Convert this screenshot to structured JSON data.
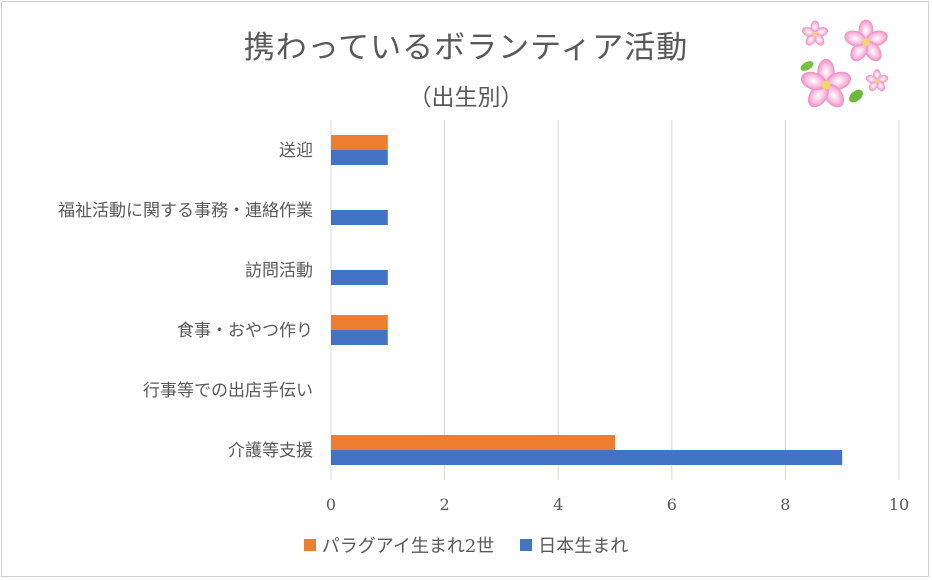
{
  "chart_data": {
    "type": "bar",
    "orientation": "horizontal",
    "title": "携わっているボランティア活動",
    "subtitle": "（出生別）",
    "categories": [
      "送迎",
      "福祉活動に関する事務・連絡作業",
      "訪問活動",
      "食事・おやつ作り",
      "行事等での出店手伝い",
      "介護等支援"
    ],
    "series": [
      {
        "name": "パラグアイ生まれ2世",
        "color": "#ED7D31",
        "values": [
          1,
          0,
          0,
          1,
          0,
          5
        ]
      },
      {
        "name": "日本生まれ",
        "color": "#4472C4",
        "values": [
          1,
          1,
          1,
          1,
          0,
          9
        ]
      }
    ],
    "xlim": [
      0,
      10
    ],
    "xticks": [
      "0",
      "2",
      "4",
      "6",
      "8",
      "10"
    ],
    "grid": "vertical",
    "legend_position": "bottom"
  },
  "decoration": {
    "icon": "sakura-blossom-icon"
  }
}
